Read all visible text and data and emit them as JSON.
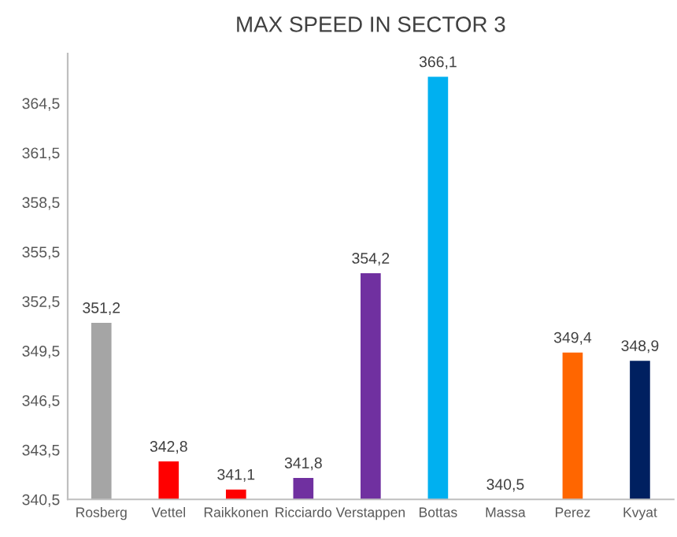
{
  "chart_data": {
    "type": "bar",
    "title": "MAX SPEED IN SECTOR 3",
    "categories": [
      "Rosberg",
      "Vettel",
      "Raikkonen",
      "Ricciardo",
      "Verstappen",
      "Bottas",
      "Massa",
      "Perez",
      "Kvyat"
    ],
    "values": [
      351.2,
      342.8,
      341.1,
      341.8,
      354.2,
      366.1,
      340.5,
      349.4,
      348.9
    ],
    "value_labels": [
      "351,2",
      "342,8",
      "341,1",
      "341,8",
      "354,2",
      "366,1",
      "340,5",
      "349,4",
      "348,9"
    ],
    "colors": [
      "#a5a5a5",
      "#ff0000",
      "#ff0000",
      "#7030a0",
      "#7030a0",
      "#00b0f0",
      "#ffffff",
      "#ff6600",
      "#002060"
    ],
    "ylim": [
      340.5,
      367.5
    ],
    "yticks": [
      {
        "value": 340.5,
        "label": "340,5"
      },
      {
        "value": 343.5,
        "label": "343,5"
      },
      {
        "value": 346.5,
        "label": "346,5"
      },
      {
        "value": 349.5,
        "label": "349,5"
      },
      {
        "value": 352.5,
        "label": "352,5"
      },
      {
        "value": 355.5,
        "label": "355,5"
      },
      {
        "value": 358.5,
        "label": "358,5"
      },
      {
        "value": 361.5,
        "label": "361,5"
      },
      {
        "value": 364.5,
        "label": "364,5"
      }
    ],
    "grid": false,
    "legend": false
  }
}
